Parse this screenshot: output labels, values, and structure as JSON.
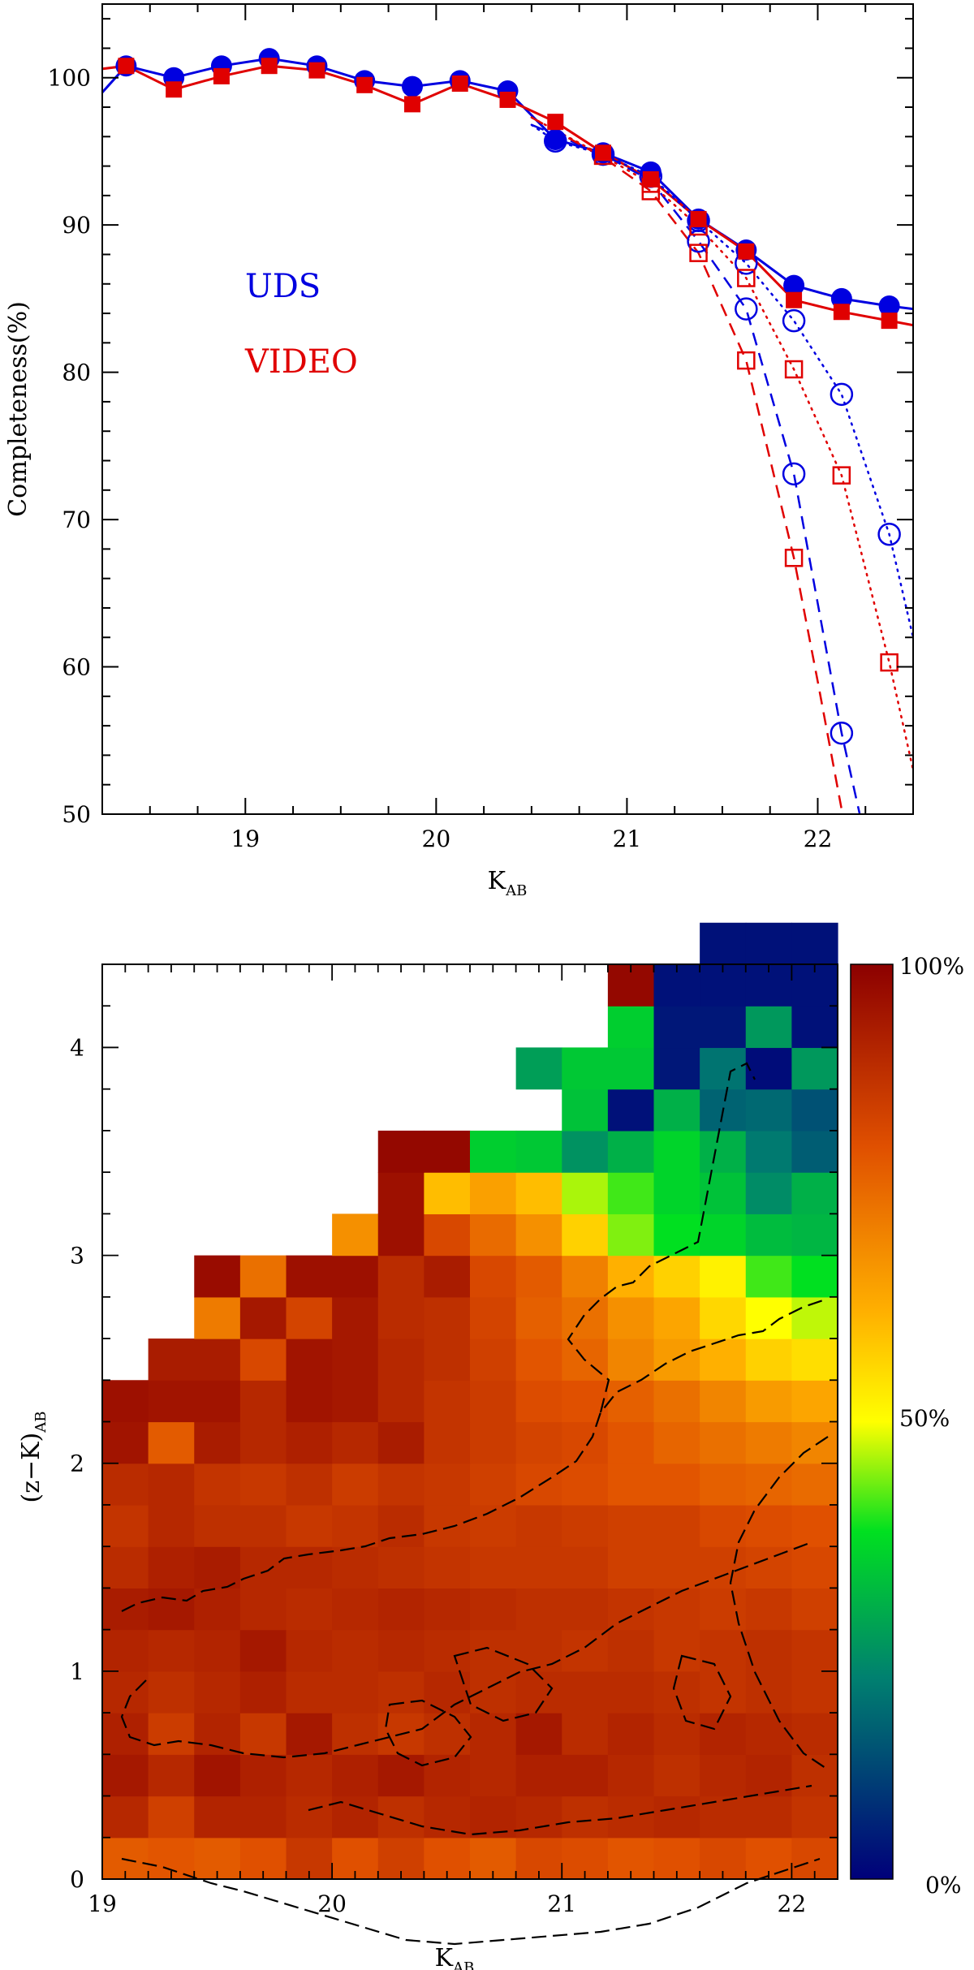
{
  "chart_data": [
    {
      "type": "line",
      "xlabel": "K",
      "xlabel_sub": "AB",
      "ylabel": "Completeness(%)",
      "xlim": [
        18.25,
        22.5
      ],
      "ylim": [
        50,
        105
      ],
      "xticks": [
        19,
        20,
        21,
        22
      ],
      "yticks": [
        50,
        60,
        70,
        80,
        90,
        100
      ],
      "legend": [
        {
          "label": "UDS",
          "color": "#0000e0"
        },
        {
          "label": "VIDEO",
          "color": "#e00000"
        }
      ],
      "series": [
        {
          "name": "UDS",
          "style": "solid",
          "marker": "filled-circle",
          "color": "#0000e0",
          "x": [
            18.375,
            18.625,
            18.875,
            19.125,
            19.375,
            19.625,
            19.875,
            20.125,
            20.375,
            20.625,
            20.875,
            21.125,
            21.375,
            21.625,
            21.875,
            22.125,
            22.375
          ],
          "y": [
            100.8,
            100.0,
            100.8,
            101.3,
            100.8,
            99.8,
            99.4,
            99.8,
            99.1,
            95.8,
            94.9,
            93.6,
            90.4,
            88.3,
            85.9,
            85.0,
            84.5
          ],
          "curve_x": [
            18.25,
            18.375,
            18.625,
            18.875,
            19.125,
            19.375,
            19.625,
            19.875,
            20.125,
            20.375,
            20.625,
            20.875,
            21.125,
            21.375,
            21.625,
            21.875,
            22.125,
            22.375,
            22.5
          ],
          "curve_y": [
            99.0,
            100.8,
            100.0,
            100.8,
            101.3,
            100.8,
            99.8,
            99.4,
            99.8,
            99.1,
            95.8,
            94.9,
            93.6,
            90.4,
            88.3,
            85.9,
            85.0,
            84.5,
            84.3
          ]
        },
        {
          "name": "VIDEO",
          "style": "solid",
          "marker": "filled-square",
          "color": "#e00000",
          "x": [
            18.375,
            18.625,
            18.875,
            19.125,
            19.375,
            19.625,
            19.875,
            20.125,
            20.375,
            20.625,
            20.875,
            21.125,
            21.375,
            21.625,
            21.875,
            22.125,
            22.375
          ],
          "y": [
            100.8,
            99.2,
            100.1,
            100.8,
            100.5,
            99.5,
            98.2,
            99.6,
            98.5,
            97.0,
            94.9,
            93.1,
            90.4,
            88.2,
            84.9,
            84.1,
            83.5
          ],
          "curve_x": [
            18.25,
            18.375,
            18.625,
            18.875,
            19.125,
            19.375,
            19.625,
            19.875,
            20.125,
            20.375,
            20.625,
            20.875,
            21.125,
            21.375,
            21.625,
            21.875,
            22.125,
            22.375,
            22.5
          ],
          "curve_y": [
            100.6,
            100.8,
            99.2,
            100.1,
            100.8,
            100.5,
            99.5,
            98.2,
            99.6,
            98.5,
            97.0,
            94.9,
            93.1,
            90.4,
            88.2,
            84.9,
            84.1,
            83.5,
            83.2
          ]
        },
        {
          "name": "UDS (dotted)",
          "style": "dotted",
          "marker": "open-circle",
          "color": "#0000e0",
          "x": [
            20.625,
            20.875,
            21.125,
            21.375,
            21.625,
            21.875,
            22.125,
            22.375
          ],
          "y": [
            95.7,
            94.8,
            93.3,
            90.3,
            87.4,
            83.5,
            78.5,
            69.0
          ],
          "curve_x": [
            20.5,
            20.625,
            20.875,
            21.125,
            21.375,
            21.625,
            21.875,
            22.125,
            22.375,
            22.5
          ],
          "curve_y": [
            96.8,
            95.7,
            94.8,
            93.3,
            90.3,
            87.4,
            83.5,
            78.5,
            69.0,
            62.0
          ]
        },
        {
          "name": "UDS (dashed)",
          "style": "dashed",
          "marker": "open-circle",
          "color": "#0000e0",
          "x": [
            21.375,
            21.625,
            21.875,
            22.125
          ],
          "y": [
            88.9,
            84.3,
            73.1,
            55.5
          ],
          "curve_x": [
            20.5,
            20.875,
            21.125,
            21.375,
            21.625,
            21.875,
            22.125,
            22.22
          ],
          "curve_y": [
            96.8,
            94.8,
            93.0,
            88.9,
            84.3,
            73.1,
            55.5,
            50.0
          ]
        },
        {
          "name": "VIDEO (dotted)",
          "style": "dotted",
          "marker": "open-square",
          "color": "#e00000",
          "x": [
            20.875,
            21.125,
            21.375,
            21.625,
            21.875,
            22.125,
            22.375
          ],
          "y": [
            94.7,
            92.8,
            89.9,
            86.4,
            80.2,
            73.0,
            60.3
          ],
          "curve_x": [
            20.5,
            20.875,
            21.125,
            21.375,
            21.625,
            21.875,
            22.125,
            22.375,
            22.5
          ],
          "curve_y": [
            97.3,
            94.7,
            92.8,
            89.9,
            86.4,
            80.2,
            73.0,
            60.3,
            53.0
          ]
        },
        {
          "name": "VIDEO (dashed)",
          "style": "dashed",
          "marker": "open-square",
          "color": "#e00000",
          "x": [
            21.125,
            21.375,
            21.625,
            21.875
          ],
          "y": [
            92.3,
            88.1,
            80.8,
            67.4
          ],
          "curve_x": [
            20.5,
            20.875,
            21.125,
            21.375,
            21.625,
            21.875,
            22.0,
            22.13
          ],
          "curve_y": [
            97.3,
            94.6,
            92.3,
            88.1,
            80.8,
            67.4,
            59.0,
            50.0
          ]
        }
      ]
    },
    {
      "type": "heatmap",
      "xlabel": "K",
      "xlabel_sub": "AB",
      "ylabel": "(z−K)",
      "ylabel_sub": "AB",
      "xlim": [
        19,
        22.2
      ],
      "ylim": [
        0,
        4.4
      ],
      "xticks": [
        19,
        20,
        21,
        22
      ],
      "yticks": [
        0,
        1,
        2,
        3,
        4
      ],
      "x_bin_width": 0.2,
      "y_bin_width": 0.2,
      "colorbar": {
        "min_label": "0%",
        "mid_label": "50%",
        "max_label": "100%"
      },
      "rows_note": "completeness (0-100) per cell; rows from (z-K)=0.0 upward in 0.2 steps; columns from K=19.0 in 0.2 steps; null = empty",
      "rows": [
        [
          78,
          79,
          78,
          80,
          86,
          80,
          84,
          80,
          78,
          82,
          81,
          79,
          80,
          82,
          80,
          82
        ],
        [
          90,
          84,
          91,
          91,
          89,
          91,
          88,
          90,
          91,
          90,
          88,
          89,
          90,
          89,
          89,
          87
        ],
        [
          94,
          90,
          95,
          92,
          90,
          92,
          94,
          91,
          90,
          92,
          92,
          90,
          88,
          90,
          91,
          88
        ],
        [
          92,
          85,
          91,
          86,
          94,
          88,
          86,
          88,
          90,
          94,
          89,
          91,
          89,
          91,
          90,
          89
        ],
        [
          90,
          88,
          90,
          92,
          89,
          89,
          88,
          90,
          88,
          89,
          89,
          89,
          88,
          87,
          88,
          87
        ],
        [
          91,
          90,
          91,
          94,
          90,
          89,
          90,
          89,
          88,
          88,
          87,
          88,
          86,
          87,
          88,
          87
        ],
        [
          93,
          94,
          92,
          90,
          89,
          90,
          91,
          90,
          89,
          88,
          88,
          87,
          86,
          85,
          86,
          84
        ],
        [
          89,
          92,
          93,
          90,
          90,
          89,
          88,
          87,
          86,
          86,
          86,
          84,
          84,
          84,
          83,
          82
        ],
        [
          87,
          90,
          88,
          88,
          86,
          87,
          89,
          86,
          85,
          86,
          85,
          84,
          84,
          82,
          81,
          80
        ],
        [
          89,
          90,
          87,
          86,
          88,
          85,
          87,
          86,
          84,
          82,
          81,
          79,
          79,
          77,
          76,
          75
        ],
        [
          95,
          78,
          93,
          90,
          92,
          90,
          93,
          87,
          85,
          83,
          82,
          79,
          76,
          74,
          72,
          70
        ],
        [
          96,
          95,
          95,
          90,
          95,
          94,
          90,
          87,
          85,
          81,
          80,
          77,
          74,
          70,
          66,
          64
        ],
        [
          null,
          93,
          93,
          82,
          95,
          94,
          90,
          88,
          84,
          79,
          76,
          70,
          66,
          62,
          57,
          55
        ],
        [
          null,
          null,
          72,
          94,
          83,
          94,
          89,
          88,
          83,
          77,
          74,
          68,
          64,
          56,
          50,
          47
        ],
        [
          null,
          null,
          97,
          74,
          96,
          96,
          89,
          93,
          82,
          78,
          71,
          62,
          57,
          52,
          41,
          38
        ],
        [
          null,
          null,
          null,
          null,
          null,
          68,
          96,
          82,
          75,
          68,
          57,
          44,
          38,
          36,
          32,
          31
        ],
        [
          null,
          null,
          null,
          null,
          null,
          null,
          96,
          60,
          65,
          60,
          46,
          41,
          36,
          33,
          24,
          30
        ],
        [
          null,
          null,
          null,
          null,
          null,
          null,
          98,
          98,
          35,
          34,
          25,
          30,
          36,
          30,
          21,
          16
        ],
        [
          null,
          null,
          null,
          null,
          null,
          null,
          null,
          null,
          null,
          null,
          33,
          3,
          30,
          17,
          18,
          14
        ],
        [
          null,
          null,
          null,
          null,
          null,
          null,
          null,
          null,
          null,
          27,
          34,
          34,
          4,
          20,
          2,
          26
        ],
        [
          null,
          null,
          null,
          null,
          null,
          null,
          null,
          null,
          null,
          null,
          null,
          35,
          4,
          4,
          26,
          3
        ],
        [
          null,
          null,
          null,
          null,
          null,
          null,
          null,
          null,
          null,
          null,
          null,
          98,
          3,
          3,
          3,
          3
        ],
        [
          null,
          null,
          null,
          null,
          null,
          null,
          null,
          null,
          null,
          null,
          null,
          null,
          null,
          3,
          3,
          3
        ]
      ]
    }
  ]
}
